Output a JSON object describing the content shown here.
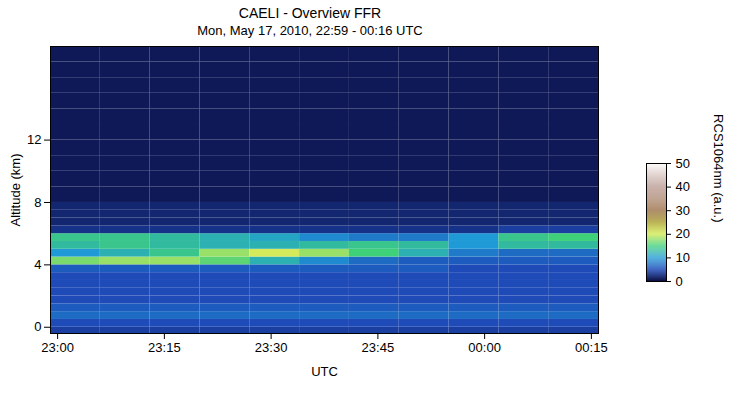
{
  "chart_data": {
    "type": "heatmap",
    "title": "CAELI - Overview FFR",
    "subtitle": "Mon, May 17, 2010, 22:59 - 00:16 UTC",
    "x_label": "UTC",
    "y_label": "Altitude (km)",
    "xlim": [
      1379,
      1456
    ],
    "xticks": [
      {
        "value": 1380,
        "label": "23:00"
      },
      {
        "value": 1395,
        "label": "23:15"
      },
      {
        "value": 1410,
        "label": "23:30"
      },
      {
        "value": 1425,
        "label": "23:45"
      },
      {
        "value": 1440,
        "label": "00:00"
      },
      {
        "value": 1455,
        "label": "00:15"
      }
    ],
    "ylim": [
      -0.4,
      18
    ],
    "yticks": [
      0,
      4,
      8,
      12
    ],
    "x_bins": [
      1379,
      1386,
      1393,
      1400,
      1407,
      1414,
      1421,
      1428,
      1435,
      1442,
      1449,
      1456
    ],
    "y_bins": [
      -0.5,
      0,
      0.5,
      1,
      1.5,
      2,
      2.5,
      3,
      3.5,
      4,
      4.5,
      5,
      5.5,
      6,
      6.5,
      7,
      7.5,
      8,
      9,
      10,
      11,
      12,
      13,
      14,
      15,
      16,
      17,
      18
    ],
    "cells": [
      [
        4,
        4,
        4,
        4,
        4,
        4,
        4,
        4,
        4,
        4,
        4
      ],
      [
        5,
        5,
        5,
        5,
        5,
        5,
        5,
        5,
        5,
        5,
        5
      ],
      [
        7,
        7,
        7,
        7,
        7,
        7,
        7,
        7,
        7,
        7,
        7
      ],
      [
        6,
        6,
        6,
        6,
        6,
        6,
        6,
        6,
        6,
        6,
        6
      ],
      [
        5,
        5,
        5,
        5,
        5,
        5,
        5,
        5,
        5,
        5,
        5
      ],
      [
        5,
        5,
        5,
        5,
        5,
        5,
        5,
        5,
        5,
        5,
        5
      ],
      [
        5,
        5,
        5,
        5,
        5,
        5,
        5,
        5,
        5,
        5,
        5
      ],
      [
        5,
        5,
        5,
        5,
        5,
        5,
        5,
        5,
        5,
        5,
        5
      ],
      [
        6,
        6,
        6,
        6,
        6,
        6,
        6,
        6,
        5,
        5,
        5
      ],
      [
        17,
        18,
        18,
        16,
        12,
        9,
        7,
        6,
        6,
        6,
        6
      ],
      [
        10,
        12,
        14,
        18,
        20,
        18,
        15,
        12,
        8,
        7,
        7
      ],
      [
        13,
        14,
        13,
        12,
        12,
        13,
        14,
        13,
        10,
        13,
        13
      ],
      [
        14,
        14,
        13,
        12,
        11,
        9,
        8,
        8,
        10,
        14,
        15
      ],
      [
        3,
        3,
        3,
        3,
        3,
        3,
        3,
        3,
        3,
        4,
        4
      ],
      [
        2,
        2,
        2,
        2,
        2,
        2,
        2,
        2,
        2,
        2,
        2
      ],
      [
        2,
        2,
        2,
        2,
        2,
        2,
        2,
        2,
        2,
        2,
        2
      ],
      [
        2,
        2,
        2,
        2,
        2,
        2,
        2,
        2,
        2,
        2,
        2
      ],
      [
        1,
        1,
        1,
        1,
        1,
        1,
        1,
        1,
        1,
        1,
        1
      ],
      [
        1,
        1,
        1,
        1,
        1,
        1,
        1,
        1,
        1,
        1,
        1
      ],
      [
        1,
        1,
        1,
        1,
        1,
        1,
        1,
        1,
        1,
        1,
        1
      ],
      [
        1,
        1,
        1,
        1,
        1,
        1,
        1,
        1,
        1,
        1,
        1
      ],
      [
        1,
        1,
        1,
        1,
        1,
        1,
        1,
        1,
        1,
        1,
        1
      ],
      [
        1,
        1,
        1,
        1,
        1,
        1,
        1,
        1,
        1,
        1,
        1
      ],
      [
        1,
        1,
        1,
        1,
        1,
        1,
        1,
        1,
        1,
        1,
        1
      ],
      [
        1,
        1,
        1,
        1,
        1,
        1,
        1,
        1,
        1,
        1,
        1
      ],
      [
        1,
        1,
        1,
        1,
        1,
        1,
        1,
        1,
        1,
        1,
        1
      ],
      [
        1,
        1,
        1,
        1,
        1,
        1,
        1,
        1,
        1,
        1,
        1
      ]
    ],
    "colorbar": {
      "label": "RCS1064nm (a.u.)",
      "range": [
        0,
        50
      ],
      "ticks": [
        0,
        10,
        20,
        30,
        40,
        50
      ]
    }
  }
}
